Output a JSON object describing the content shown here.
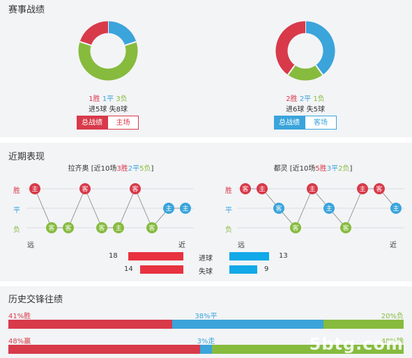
{
  "sections": {
    "record_title": "赛事战绩",
    "recent_title": "近期表现",
    "h2h_title": "历史交锋往绩"
  },
  "home": {
    "record": {
      "win": "1胜",
      "draw": "1平",
      "loss": "3负",
      "goals_for": "进5球",
      "goals_against": "失8球"
    },
    "tab_all": "总战绩",
    "tab_venue": "主场",
    "donut": {
      "win": 1,
      "draw": 1,
      "loss": 3
    },
    "recent_header": {
      "name": "拉齐奥",
      "prefix": "[近10场",
      "w": "3胜",
      "d": "2平",
      "l": "5负",
      "suffix": "]"
    },
    "recent_results": [
      {
        "result": "W",
        "venue": "主"
      },
      {
        "result": "L",
        "venue": "客"
      },
      {
        "result": "L",
        "venue": "客"
      },
      {
        "result": "W",
        "venue": "客"
      },
      {
        "result": "L",
        "venue": "客"
      },
      {
        "result": "L",
        "venue": "主"
      },
      {
        "result": "W",
        "venue": "客"
      },
      {
        "result": "L",
        "venue": "客"
      },
      {
        "result": "D",
        "venue": "主"
      },
      {
        "result": "D",
        "venue": "主"
      }
    ],
    "goals_for": "18",
    "goals_against": "14"
  },
  "away": {
    "record": {
      "win": "2胜",
      "draw": "2平",
      "loss": "1负",
      "goals_for": "进6球",
      "goals_against": "失5球"
    },
    "tab_all": "总战绩",
    "tab_venue": "客场",
    "donut": {
      "win": 2,
      "draw": 2,
      "loss": 1
    },
    "recent_header": {
      "name": "都灵",
      "prefix": "[近10场",
      "w": "5胜",
      "d": "3平",
      "l": "2负",
      "suffix": "]"
    },
    "recent_results": [
      {
        "result": "W",
        "venue": "客"
      },
      {
        "result": "W",
        "venue": "主"
      },
      {
        "result": "D",
        "venue": "客"
      },
      {
        "result": "L",
        "venue": "客"
      },
      {
        "result": "W",
        "venue": "主"
      },
      {
        "result": "D",
        "venue": "主"
      },
      {
        "result": "L",
        "venue": "客"
      },
      {
        "result": "W",
        "venue": "主"
      },
      {
        "result": "W",
        "venue": "客"
      },
      {
        "result": "D",
        "venue": "主"
      }
    ],
    "goals_for": "13",
    "goals_against": "9"
  },
  "axis": {
    "win": "胜",
    "draw": "平",
    "loss": "负",
    "far": "远",
    "near": "近"
  },
  "compare": {
    "goals_for_label": "进球",
    "goals_against_label": "失球",
    "max": 20
  },
  "h2h": {
    "row1": {
      "left": "41%胜",
      "mid": "38%平",
      "right": "20%负",
      "values": [
        41,
        38,
        20
      ]
    },
    "row2": {
      "left": "48%赢",
      "mid": "3%走",
      "right": "48%输",
      "values": [
        48,
        3,
        48
      ]
    }
  },
  "watermark": "5btg.com",
  "colors": {
    "win": "#d83a4a",
    "draw": "#3aa4db",
    "loss": "#86bb3e",
    "goal_for": "#e8323f",
    "goal_against_bar": "#12a9e8"
  }
}
